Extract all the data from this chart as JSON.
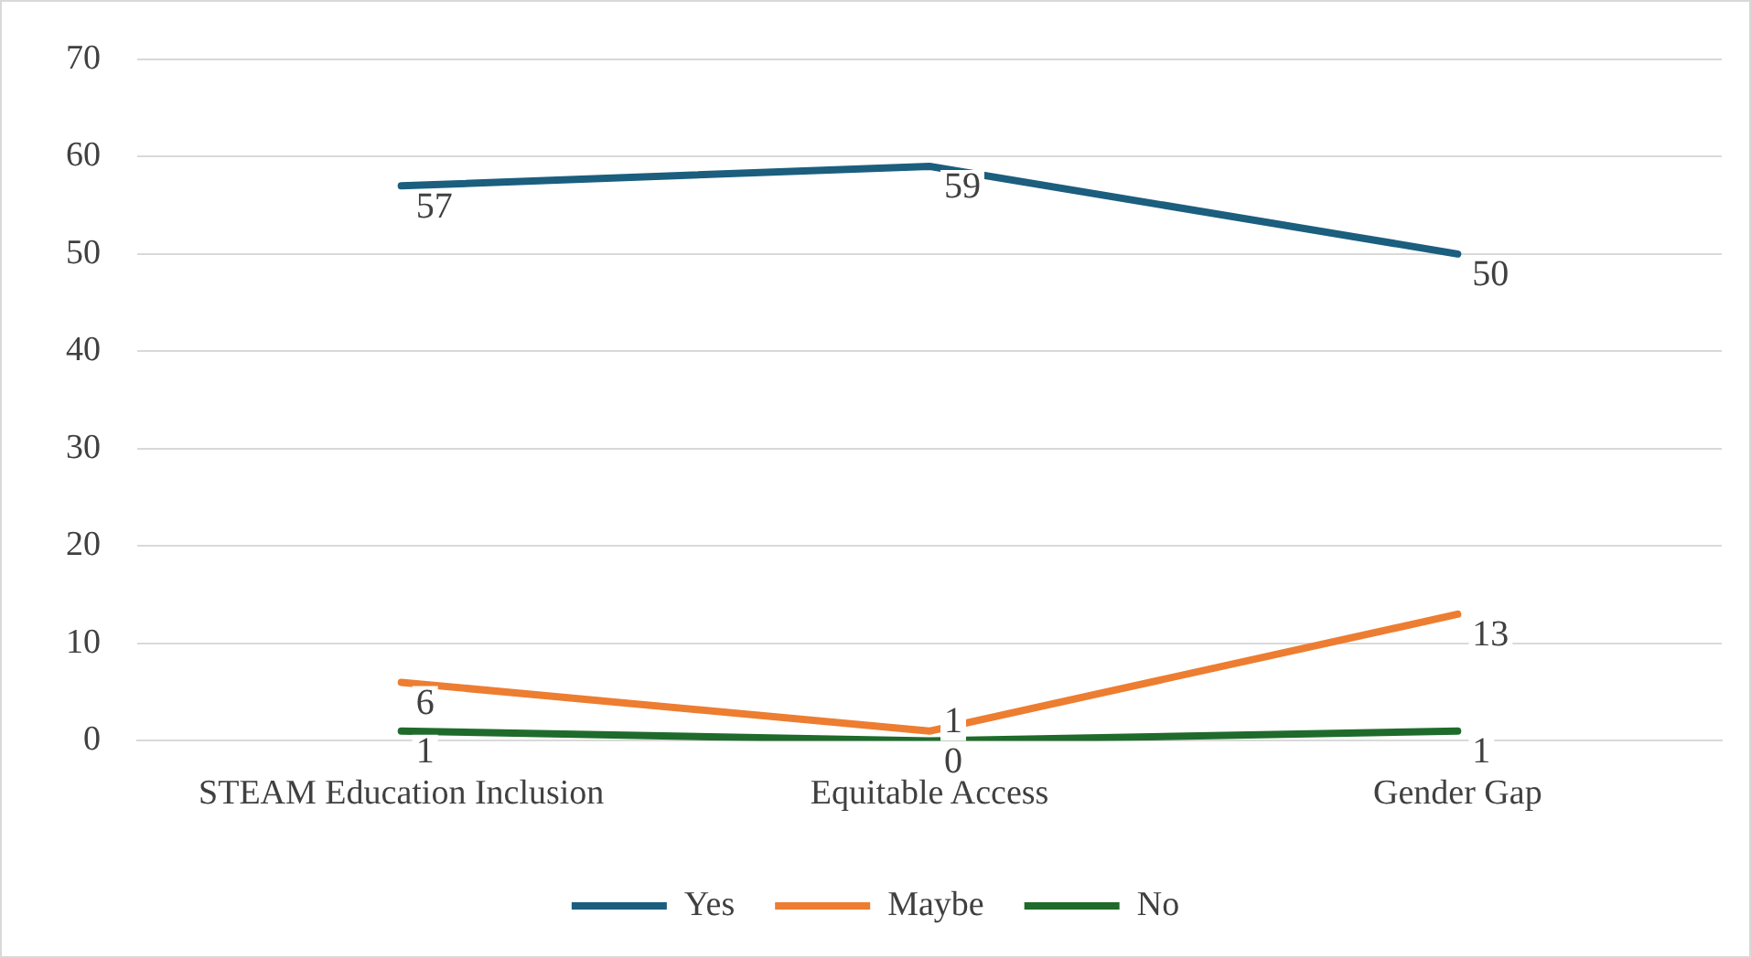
{
  "chart_data": {
    "type": "line",
    "categories": [
      "STEAM Education Inclusion",
      "Equitable Access",
      "Gender Gap"
    ],
    "series": [
      {
        "name": "Yes",
        "color": "#1b5e7e",
        "values": [
          57,
          59,
          50
        ]
      },
      {
        "name": "Maybe",
        "color": "#ed7d31",
        "values": [
          6,
          1,
          13
        ]
      },
      {
        "name": "No",
        "color": "#1f6b2b",
        "values": [
          1,
          0,
          1
        ]
      }
    ],
    "ylim": [
      0,
      70
    ],
    "yticks": [
      0,
      10,
      20,
      30,
      40,
      50,
      60,
      70
    ],
    "grid": "y",
    "legend": "bottom",
    "marker": "none",
    "line_style": "solid",
    "data_labels": true
  }
}
